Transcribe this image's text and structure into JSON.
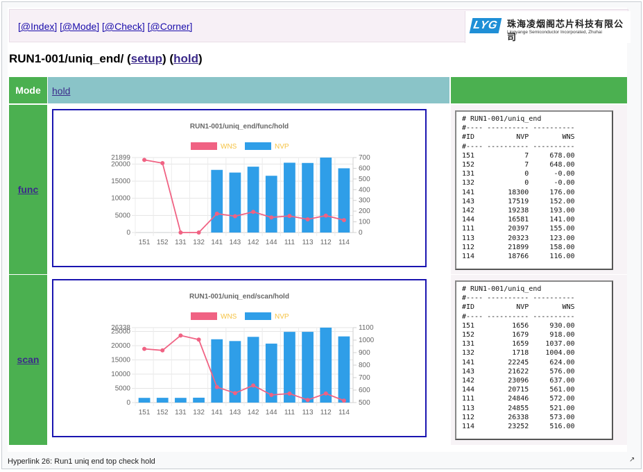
{
  "nav": {
    "links": [
      "[@Index]",
      "[@Mode]",
      "[@Check]",
      "[@Corner]"
    ]
  },
  "logo": {
    "badge": "LYG",
    "cn": "珠海凌烟阁芯片科技有限公司",
    "en": "Lingyange Semiconductor Incorporated, Zhuhai"
  },
  "page": {
    "title_prefix": "RUN1-001/uniq_end/ (",
    "setup_link": "setup",
    "mid": ") (",
    "hold_link": "hold",
    "title_suffix": ")"
  },
  "table": {
    "mode_header": "Mode",
    "mode_value": "hold"
  },
  "rows": [
    {
      "name": "func",
      "report_lines": [
        "# RUN1-001/uniq_end",
        "#---- ---------- ----------",
        "#ID          NVP        WNS",
        "#---- ---------- ----------",
        "151            7     678.00",
        "152            7     648.00",
        "131            0      -0.00",
        "132            0      -0.00",
        "141        18300     176.00",
        "143        17519     152.00",
        "142        19238     193.00",
        "144        16581     141.00",
        "111        20397     155.00",
        "113        20323     123.00",
        "112        21899     158.00",
        "114        18766     116.00"
      ]
    },
    {
      "name": "scan",
      "report_lines": [
        "# RUN1-001/uniq_end",
        "#---- ---------- ----------",
        "#ID          NVP        WNS",
        "#---- ---------- ----------",
        "151         1656     930.00",
        "152         1679     918.00",
        "131         1659    1037.00",
        "132         1718    1004.00",
        "141        22245     624.00",
        "143        21622     576.00",
        "142        23096     637.00",
        "144        20715     561.00",
        "111        24846     572.00",
        "113        24855     521.00",
        "112        26338     573.00",
        "114        23252     516.00"
      ]
    }
  ],
  "chart_data": [
    {
      "type": "bar",
      "title": "RUN1-001/uniq_end/func/hold",
      "categories": [
        "151",
        "152",
        "131",
        "132",
        "141",
        "143",
        "142",
        "144",
        "111",
        "113",
        "112",
        "114"
      ],
      "series": [
        {
          "name": "WNS",
          "type": "line",
          "axis": "right",
          "color": "#f06283",
          "values": [
            678,
            648,
            0,
            0,
            176,
            152,
            193,
            141,
            155,
            123,
            158,
            116
          ]
        },
        {
          "name": "NVP",
          "type": "bar",
          "axis": "left",
          "color": "#2f9ee8",
          "values": [
            7,
            7,
            0,
            0,
            18300,
            17519,
            19238,
            16581,
            20397,
            20323,
            21899,
            18766
          ]
        }
      ],
      "yleft": {
        "min": 0,
        "max": 21899,
        "ticks": [
          0,
          5000,
          10000,
          15000,
          20000,
          21899
        ]
      },
      "yright": {
        "min": 0,
        "max": 700,
        "ticks": [
          0,
          100,
          200,
          300,
          400,
          500,
          600,
          700
        ]
      },
      "legend_position": "top",
      "legend_text_color": "#f5c242",
      "grid": true
    },
    {
      "type": "bar",
      "title": "RUN1-001/uniq_end/scan/hold",
      "categories": [
        "151",
        "152",
        "131",
        "132",
        "141",
        "143",
        "142",
        "144",
        "111",
        "113",
        "112",
        "114"
      ],
      "series": [
        {
          "name": "WNS",
          "type": "line",
          "axis": "right",
          "color": "#f06283",
          "values": [
            930,
            918,
            1037,
            1004,
            624,
            576,
            637,
            561,
            572,
            521,
            573,
            516
          ]
        },
        {
          "name": "NVP",
          "type": "bar",
          "axis": "left",
          "color": "#2f9ee8",
          "values": [
            1656,
            1679,
            1659,
            1718,
            22245,
            21622,
            23096,
            20715,
            24846,
            24855,
            26338,
            23252
          ]
        }
      ],
      "yleft": {
        "min": 0,
        "max": 26338,
        "ticks": [
          0,
          5000,
          10000,
          15000,
          20000,
          25000,
          26338
        ]
      },
      "yright": {
        "min": 500,
        "max": 1100,
        "ticks": [
          500,
          600,
          700,
          800,
          900,
          1000,
          1100
        ]
      },
      "legend_position": "top",
      "legend_text_color": "#f5c242",
      "grid": true
    }
  ],
  "caption": "Hyperlink 26: Run1 uniq end top check hold",
  "icons": {
    "expand": "expand-icon"
  }
}
